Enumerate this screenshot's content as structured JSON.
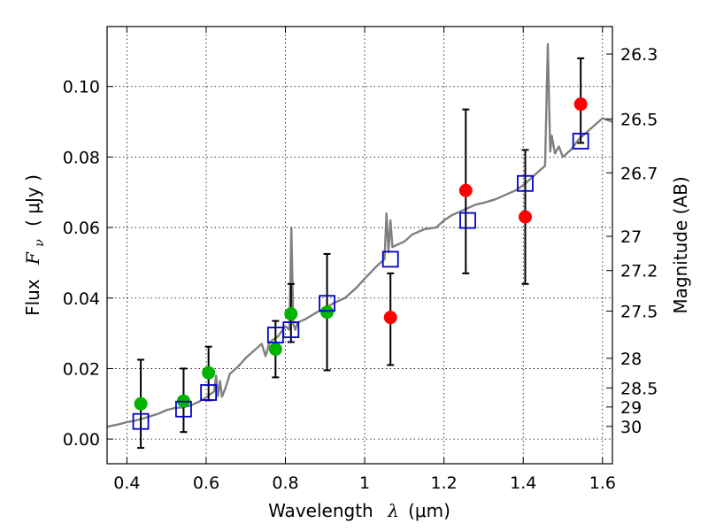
{
  "chart_data": {
    "type": "scatter",
    "title": "",
    "xlabel_main": "Wavelength",
    "xlabel_lambda": "λ",
    "xlabel_unit": "(μm)",
    "ylabel_flux": "Flux",
    "ylabel_symbol": "F",
    "ylabel_subscript": "ν",
    "ylabel_unit": "( μJy )",
    "y2label": "Magnitude (AB)",
    "xlim": [
      0.35,
      1.625
    ],
    "ylim": [
      -0.007,
      0.117
    ],
    "grid": true,
    "x_ticks": [
      0.4,
      0.6,
      0.8,
      1.0,
      1.2,
      1.4,
      1.6
    ],
    "x_tick_labels": [
      "0.4",
      "0.6",
      "0.8",
      "1",
      "1.2",
      "1.4",
      "1.6"
    ],
    "y_ticks": [
      0.0,
      0.02,
      0.04,
      0.06,
      0.08,
      0.1
    ],
    "y_tick_labels": [
      "0.00",
      "0.02",
      "0.04",
      "0.06",
      "0.08",
      "0.10"
    ],
    "y2_ticks": [
      {
        "label": "26.3",
        "flux": 0.1092
      },
      {
        "label": "26.5",
        "flux": 0.0908
      },
      {
        "label": "26.7",
        "flux": 0.0755
      },
      {
        "label": "27",
        "flux": 0.0575
      },
      {
        "label": "27.2",
        "flux": 0.0478
      },
      {
        "label": "27.5",
        "flux": 0.0363
      },
      {
        "label": "28",
        "flux": 0.0229
      },
      {
        "label": "28.5",
        "flux": 0.0145
      },
      {
        "label": "29",
        "flux": 0.0091
      },
      {
        "label": "30",
        "flux": 0.0036
      }
    ],
    "model_spectrum": {
      "name": "model spectrum",
      "color": "#808080",
      "x": [
        0.35,
        0.38,
        0.4,
        0.42,
        0.44,
        0.46,
        0.48,
        0.5,
        0.52,
        0.54,
        0.56,
        0.58,
        0.6,
        0.62,
        0.625,
        0.63,
        0.635,
        0.64,
        0.65,
        0.66,
        0.68,
        0.7,
        0.72,
        0.74,
        0.75,
        0.76,
        0.78,
        0.8,
        0.81,
        0.815,
        0.82,
        0.825,
        0.83,
        0.85,
        0.88,
        0.9,
        0.92,
        0.95,
        0.98,
        1.0,
        1.03,
        1.05,
        1.055,
        1.06,
        1.065,
        1.07,
        1.08,
        1.1,
        1.12,
        1.15,
        1.18,
        1.2,
        1.22,
        1.25,
        1.28,
        1.3,
        1.33,
        1.35,
        1.38,
        1.4,
        1.42,
        1.44,
        1.455,
        1.462,
        1.468,
        1.472,
        1.48,
        1.49,
        1.5,
        1.52,
        1.54,
        1.56,
        1.58,
        1.6,
        1.625
      ],
      "y": [
        0.0035,
        0.0042,
        0.0048,
        0.0052,
        0.0058,
        0.0065,
        0.0072,
        0.0082,
        0.0088,
        0.009,
        0.0095,
        0.0105,
        0.0118,
        0.0135,
        0.018,
        0.0122,
        0.0165,
        0.012,
        0.015,
        0.0185,
        0.0205,
        0.023,
        0.025,
        0.027,
        0.0235,
        0.0275,
        0.029,
        0.032,
        0.031,
        0.06,
        0.0325,
        0.031,
        0.033,
        0.034,
        0.036,
        0.037,
        0.0385,
        0.04,
        0.043,
        0.0455,
        0.049,
        0.051,
        0.064,
        0.053,
        0.062,
        0.0545,
        0.055,
        0.056,
        0.058,
        0.0595,
        0.06,
        0.062,
        0.0635,
        0.065,
        0.0665,
        0.067,
        0.068,
        0.069,
        0.0705,
        0.072,
        0.074,
        0.076,
        0.0775,
        0.112,
        0.0815,
        0.086,
        0.081,
        0.083,
        0.08,
        0.082,
        0.085,
        0.087,
        0.089,
        0.091,
        0.09
      ]
    },
    "series": [
      {
        "name": "green filled circles",
        "color": "#00b400",
        "marker": "circle",
        "x": [
          0.435,
          0.543,
          0.606,
          0.775,
          0.814,
          0.905
        ],
        "y": [
          0.01,
          0.0108,
          0.0188,
          0.0255,
          0.0355,
          0.036
        ]
      },
      {
        "name": "red filled circles",
        "color": "#ff0000",
        "marker": "circle",
        "x": [
          1.065,
          1.255,
          1.405,
          1.545
        ],
        "y": [
          0.0345,
          0.0705,
          0.063,
          0.095
        ]
      },
      {
        "name": "blue open squares",
        "color": "#0000cc",
        "marker": "square-open",
        "x": [
          0.435,
          0.543,
          0.606,
          0.775,
          0.814,
          0.905,
          1.065,
          1.26,
          1.405,
          1.545
        ],
        "y": [
          0.005,
          0.0085,
          0.0132,
          0.0295,
          0.031,
          0.0385,
          0.051,
          0.062,
          0.0725,
          0.0845
        ]
      }
    ],
    "error_bars": {
      "name": "error bars",
      "color": "#000000",
      "x": [
        0.435,
        0.543,
        0.606,
        0.775,
        0.814,
        0.905,
        1.065,
        1.255,
        1.405,
        1.545
      ],
      "low": [
        -0.0025,
        0.002,
        0.011,
        0.0175,
        0.0275,
        0.0195,
        0.021,
        0.047,
        0.044,
        0.084
      ],
      "high": [
        0.0225,
        0.02,
        0.0262,
        0.0335,
        0.044,
        0.0525,
        0.047,
        0.0935,
        0.082,
        0.108
      ]
    }
  }
}
